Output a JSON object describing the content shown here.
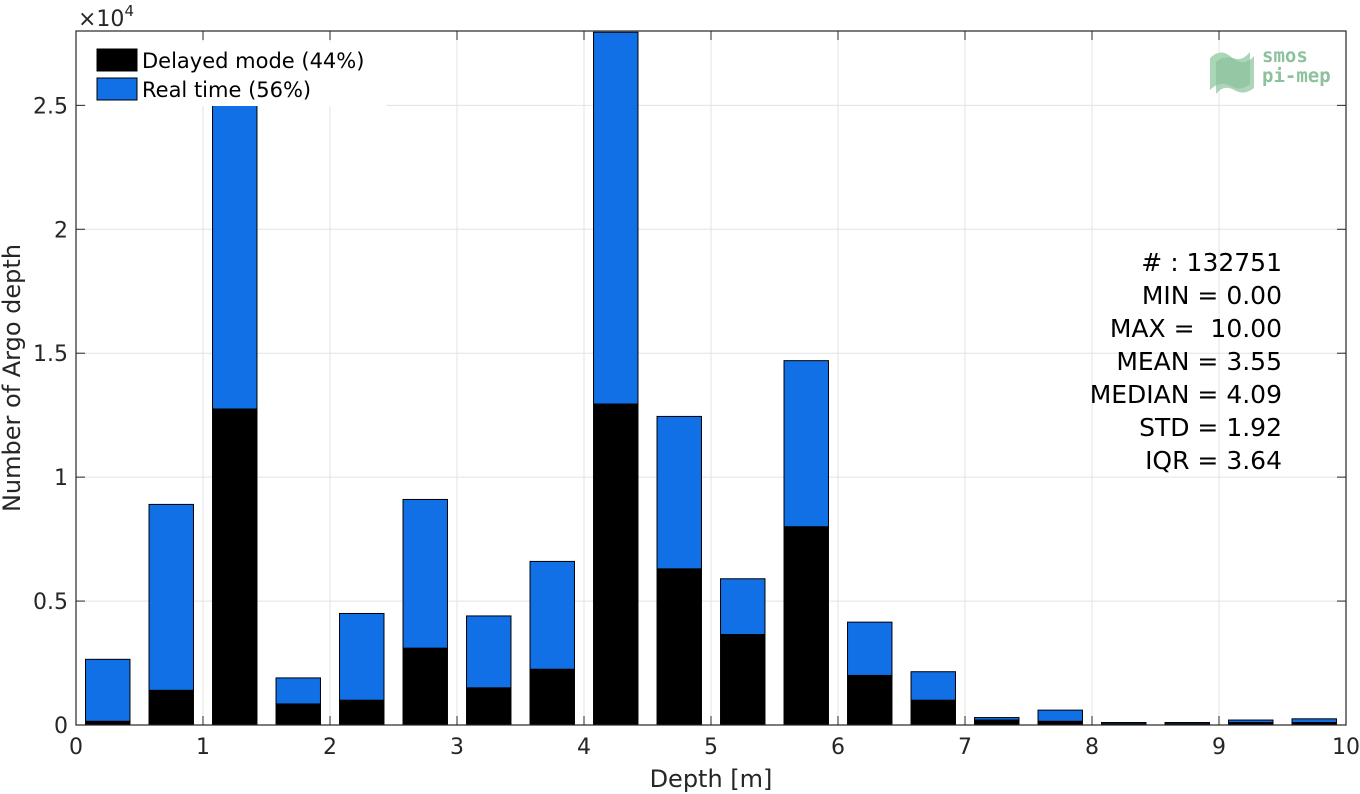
{
  "chart_data": {
    "type": "bar",
    "stacked": true,
    "x": [
      0.25,
      0.75,
      1.25,
      1.75,
      2.25,
      2.75,
      3.25,
      3.75,
      4.25,
      4.75,
      5.25,
      5.75,
      6.25,
      6.75,
      7.25,
      7.75,
      8.25,
      8.75,
      9.25,
      9.75
    ],
    "bin_width": 0.5,
    "series": [
      {
        "name": "Delayed mode (44%)",
        "color": "#000000",
        "values": [
          150,
          1400,
          12750,
          850,
          1000,
          3100,
          1500,
          2250,
          12950,
          6300,
          3650,
          8000,
          2000,
          1000,
          200,
          150,
          50,
          50,
          100,
          100
        ]
      },
      {
        "name": "Real time (56%)",
        "color": "#1170e6",
        "values": [
          2500,
          7500,
          12500,
          1050,
          3500,
          6000,
          2900,
          4350,
          15000,
          6150,
          2250,
          6700,
          2150,
          1150,
          100,
          450,
          50,
          50,
          100,
          150
        ]
      }
    ],
    "xlabel": "Depth [m]",
    "ylabel": "Number of Argo depth",
    "xlim": [
      0,
      10
    ],
    "ylim": [
      0,
      28000
    ],
    "x_ticks": [
      "0",
      "1",
      "2",
      "3",
      "4",
      "5",
      "6",
      "7",
      "8",
      "9",
      "10"
    ],
    "y_ticks": [
      "0",
      "0.5",
      "1",
      "1.5",
      "2",
      "2.5"
    ],
    "y_exponent_label": "×10",
    "y_exponent_power": "4",
    "grid": true,
    "legend_position": "top-left"
  },
  "stats": {
    "count": "# : 132751",
    "min": "MIN = 0.00",
    "max": "MAX =  10.00",
    "mean": "MEAN = 3.55",
    "median": "MEDIAN = 4.09",
    "std": "STD = 1.92",
    "iqr": "IQR = 3.64"
  },
  "logo": {
    "line1": "smos",
    "line2": "pi-mep",
    "color": "#8bc29c"
  }
}
